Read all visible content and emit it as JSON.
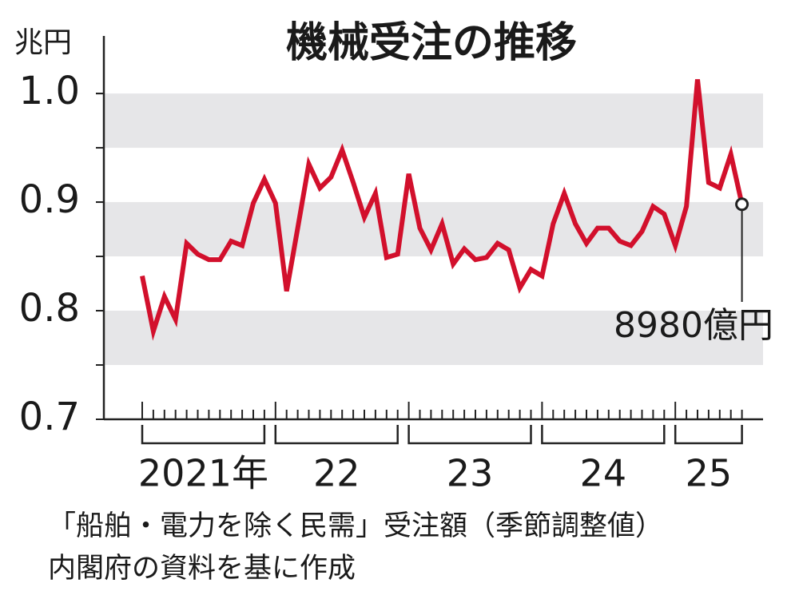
{
  "chart_data": {
    "type": "line",
    "title": "機械受注の推移",
    "unit_label": "兆円",
    "year_labels": [
      "2021年",
      "22",
      "23",
      "24",
      "25"
    ],
    "values": [
      0.832,
      0.781,
      0.813,
      0.792,
      0.862,
      0.852,
      0.847,
      0.847,
      0.864,
      0.86,
      0.899,
      0.921,
      0.899,
      0.818,
      0.876,
      0.935,
      0.913,
      0.923,
      0.948,
      0.918,
      0.886,
      0.908,
      0.849,
      0.852,
      0.926,
      0.876,
      0.856,
      0.88,
      0.843,
      0.857,
      0.847,
      0.849,
      0.862,
      0.856,
      0.821,
      0.838,
      0.832,
      0.88,
      0.908,
      0.88,
      0.862,
      0.876,
      0.876,
      0.864,
      0.86,
      0.873,
      0.896,
      0.889,
      0.86,
      0.896,
      1.013,
      0.918,
      0.913,
      0.944,
      0.898
    ],
    "last_value_label": "8980億円",
    "color": "#d2102c",
    "ylim": [
      0.7,
      1.053
    ],
    "yticks": [
      0.7,
      0.8,
      0.9,
      {
        "value": 1,
        "label": "1.0"
      }
    ],
    "bands": [
      [
        0.75,
        0.8
      ],
      [
        0.85,
        0.9
      ],
      [
        0.95,
        1.0
      ]
    ],
    "band_color": "#e6e6e8",
    "source": [
      "「船舶・電力を除く民需」受注額（季節調整値）",
      "内閣府の資料を基に作成"
    ]
  }
}
